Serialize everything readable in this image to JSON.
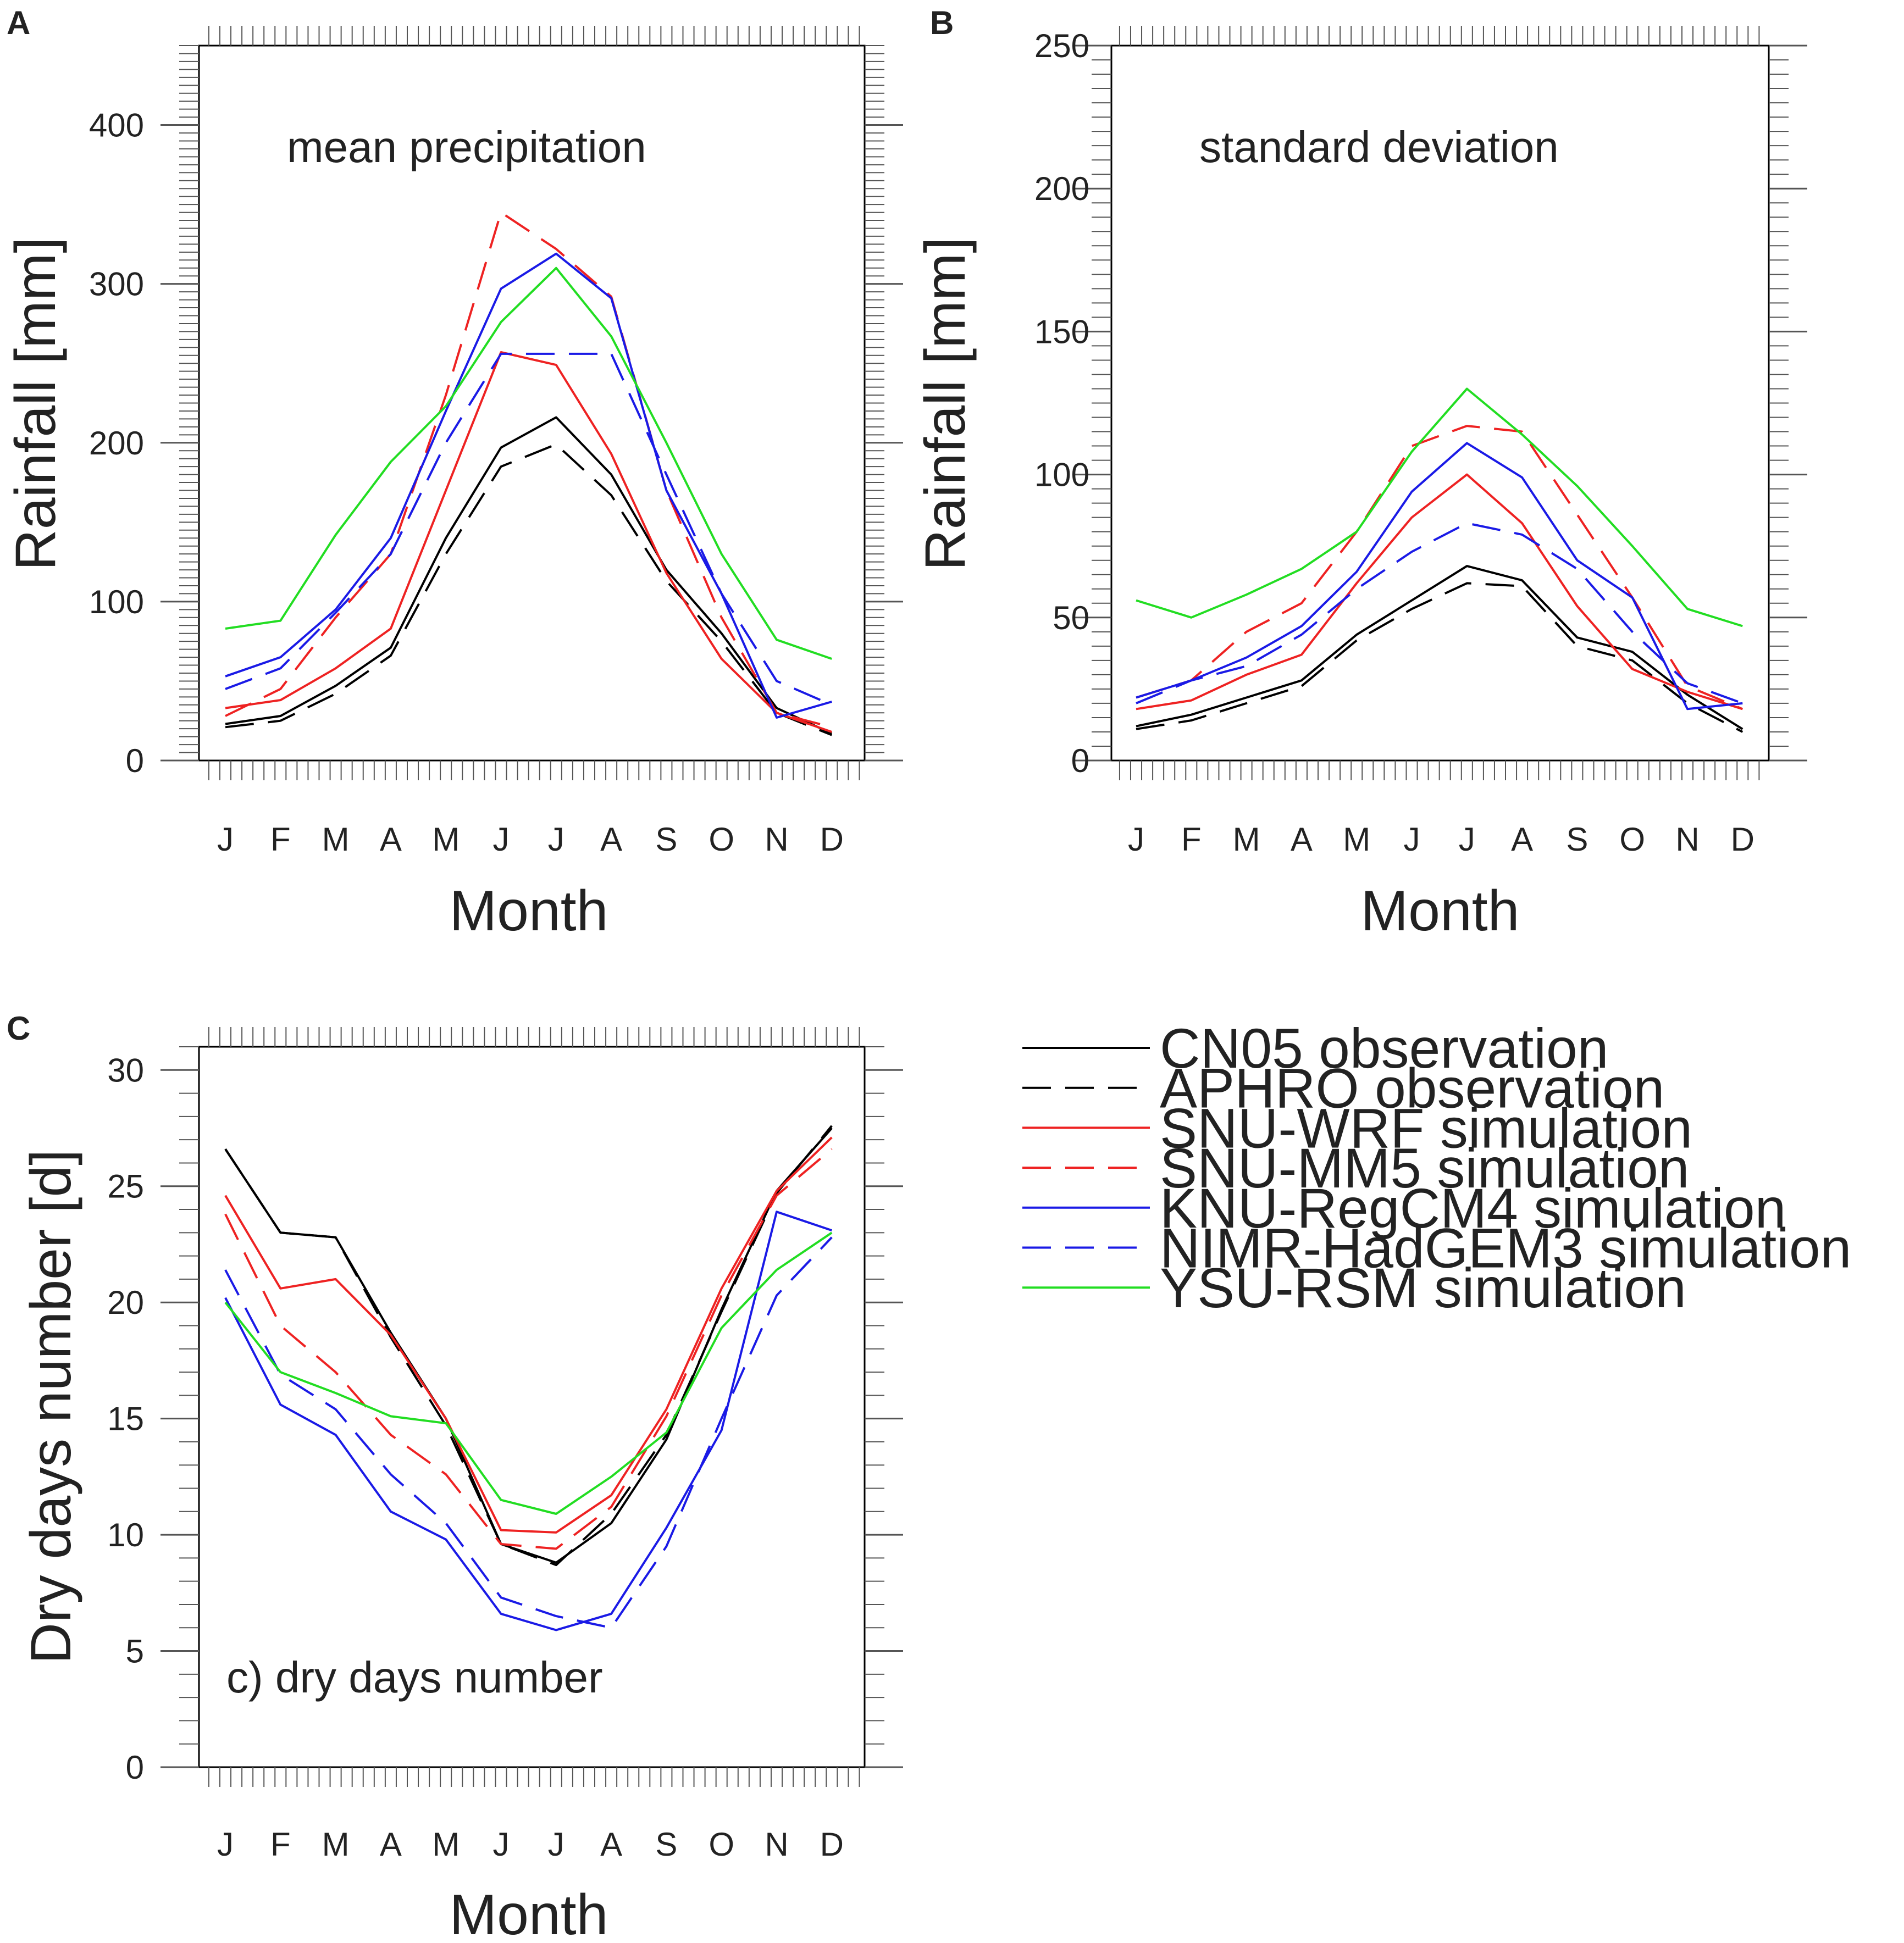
{
  "figure": {
    "style": "multi-panel line chart"
  },
  "legend": {
    "placement": "bottom-right",
    "entries": [
      {
        "label": "CN05 observation",
        "color": "#000000",
        "dash": "solid"
      },
      {
        "label": "APHRO observation",
        "color": "#000000",
        "dash": "dashed"
      },
      {
        "label": "SNU-WRF simulation",
        "color": "#ee2222",
        "dash": "solid"
      },
      {
        "label": "SNU-MM5 simulation",
        "color": "#ee2222",
        "dash": "dashed"
      },
      {
        "label": "KNU-RegCM4 simulation",
        "color": "#1a1ae6",
        "dash": "solid"
      },
      {
        "label": "NIMR-HadGEM3 simulation",
        "color": "#1a1ae6",
        "dash": "dashed"
      },
      {
        "label": "YSU-RSM simulation",
        "color": "#22dd22",
        "dash": "solid"
      }
    ]
  },
  "chart_data": [
    {
      "panel": "A",
      "type": "line",
      "title": "mean precipitation",
      "xlabel": "Month",
      "ylabel": "Rainfall [mm]",
      "categories": [
        "J",
        "F",
        "M",
        "A",
        "M",
        "J",
        "J",
        "A",
        "S",
        "O",
        "N",
        "D"
      ],
      "ylim": [
        0,
        450
      ],
      "yticks": [
        0,
        100,
        200,
        300,
        400
      ],
      "series": [
        {
          "name": "CN05 observation",
          "values": [
            23,
            28,
            47,
            71,
            140,
            197,
            216,
            180,
            120,
            80,
            33,
            17
          ]
        },
        {
          "name": "APHRO observation",
          "values": [
            21,
            25,
            42,
            66,
            130,
            185,
            199,
            167,
            113,
            75,
            30,
            16
          ]
        },
        {
          "name": "SNU-WRF simulation",
          "values": [
            33,
            38,
            58,
            83,
            170,
            257,
            249,
            193,
            118,
            64,
            30,
            18
          ]
        },
        {
          "name": "SNU-MM5 simulation",
          "values": [
            28,
            45,
            90,
            130,
            230,
            345,
            322,
            292,
            170,
            90,
            30,
            21
          ]
        },
        {
          "name": "KNU-RegCM4 simulation",
          "values": [
            53,
            65,
            95,
            140,
            220,
            297,
            319,
            291,
            170,
            105,
            27,
            37
          ]
        },
        {
          "name": "NIMR-HadGEM3 simulation",
          "values": [
            45,
            58,
            93,
            130,
            200,
            256,
            256,
            256,
            180,
            105,
            50,
            35
          ]
        },
        {
          "name": "YSU-RSM simulation",
          "values": [
            83,
            88,
            142,
            188,
            223,
            276,
            310,
            267,
            200,
            130,
            76,
            64
          ]
        }
      ]
    },
    {
      "panel": "B",
      "type": "line",
      "title": "standard deviation",
      "xlabel": "Month",
      "ylabel": "Rainfall [mm]",
      "categories": [
        "J",
        "F",
        "M",
        "A",
        "M",
        "J",
        "J",
        "A",
        "S",
        "O",
        "N",
        "D"
      ],
      "ylim": [
        0,
        250
      ],
      "yticks": [
        0,
        50,
        100,
        150,
        200,
        250
      ],
      "series": [
        {
          "name": "CN05 observation",
          "values": [
            12,
            16,
            22,
            28,
            44,
            56,
            68,
            63,
            43,
            38,
            23,
            11
          ]
        },
        {
          "name": "APHRO observation",
          "values": [
            11,
            14,
            20,
            26,
            42,
            53,
            62,
            61,
            40,
            35,
            20,
            10
          ]
        },
        {
          "name": "SNU-WRF simulation",
          "values": [
            18,
            21,
            30,
            37,
            62,
            85,
            100,
            83,
            54,
            32,
            24,
            18
          ]
        },
        {
          "name": "SNU-MM5 simulation",
          "values": [
            22,
            28,
            45,
            55,
            80,
            110,
            117,
            115,
            86,
            57,
            26,
            18
          ]
        },
        {
          "name": "KNU-RegCM4 simulation",
          "values": [
            22,
            28,
            36,
            47,
            66,
            94,
            111,
            99,
            70,
            57,
            18,
            20
          ]
        },
        {
          "name": "NIMR-HadGEM3 simulation",
          "values": [
            20,
            28,
            33,
            44,
            60,
            73,
            83,
            79,
            67,
            45,
            27,
            20
          ]
        },
        {
          "name": "YSU-RSM simulation",
          "values": [
            56,
            50,
            58,
            67,
            80,
            108,
            130,
            114,
            96,
            75,
            53,
            47
          ]
        }
      ]
    },
    {
      "panel": "C",
      "type": "line",
      "title": "c) dry days number",
      "xlabel": "Month",
      "ylabel": "Dry days number [d]",
      "categories": [
        "J",
        "F",
        "M",
        "A",
        "M",
        "J",
        "J",
        "A",
        "S",
        "O",
        "N",
        "D"
      ],
      "ylim": [
        0,
        31
      ],
      "yticks": [
        0,
        5,
        10,
        15,
        20,
        25,
        30
      ],
      "series": [
        {
          "name": "CN05 observation",
          "values": [
            26.6,
            23.0,
            22.8,
            18.7,
            15.0,
            9.6,
            8.8,
            10.5,
            14.1,
            19.7,
            24.8,
            27.5
          ]
        },
        {
          "name": "APHRO observation",
          "values": [
            26.6,
            23.0,
            22.8,
            18.5,
            14.7,
            9.6,
            8.7,
            10.9,
            14.3,
            19.6,
            24.7,
            27.6
          ]
        },
        {
          "name": "SNU-WRF simulation",
          "values": [
            24.6,
            20.6,
            21.0,
            18.6,
            15.0,
            10.2,
            10.1,
            11.7,
            15.4,
            20.6,
            24.8,
            27.1
          ]
        },
        {
          "name": "SNU-MM5 simulation",
          "values": [
            23.8,
            19.0,
            17.0,
            14.3,
            12.6,
            9.6,
            9.4,
            11.2,
            15.1,
            20.3,
            24.6,
            26.6
          ]
        },
        {
          "name": "KNU-RegCM4 simulation",
          "values": [
            20.2,
            15.6,
            14.3,
            11.0,
            9.8,
            6.6,
            5.9,
            6.6,
            10.3,
            14.5,
            23.9,
            23.1
          ]
        },
        {
          "name": "NIMR-HadGEM3 simulation",
          "values": [
            21.4,
            16.9,
            15.4,
            12.6,
            10.5,
            7.3,
            6.5,
            6.0,
            9.5,
            15.0,
            20.3,
            22.8
          ]
        },
        {
          "name": "YSU-RSM simulation",
          "values": [
            20.0,
            17.0,
            16.1,
            15.1,
            14.8,
            11.5,
            10.9,
            12.5,
            14.4,
            18.9,
            21.4,
            23.0
          ]
        }
      ]
    }
  ]
}
